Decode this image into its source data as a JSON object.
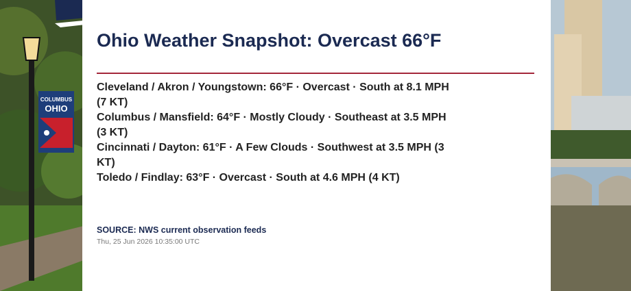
{
  "header": {
    "title": "Ohio Weather Snapshot: Overcast 66°F"
  },
  "conditions": [
    "Cleveland / Akron / Youngstown: 66°F · Overcast · South at 8.1 MPH (7 KT)",
    "Columbus / Mansfield: 64°F · Mostly Cloudy · Southeast at 3.5 MPH (3 KT)",
    "Cincinnati / Dayton: 61°F · A Few Clouds · Southwest at 3.5 MPH (3 KT)",
    "Toledo / Findlay: 63°F · Overcast · South at 4.6 MPH (4 KT)"
  ],
  "source": "SOURCE: NWS current observation feeds",
  "timestamp": "Thu, 25 Jun 2026 10:35:00 UTC",
  "banner": {
    "line1": "COLUMBUS",
    "line2": "OHIO"
  }
}
